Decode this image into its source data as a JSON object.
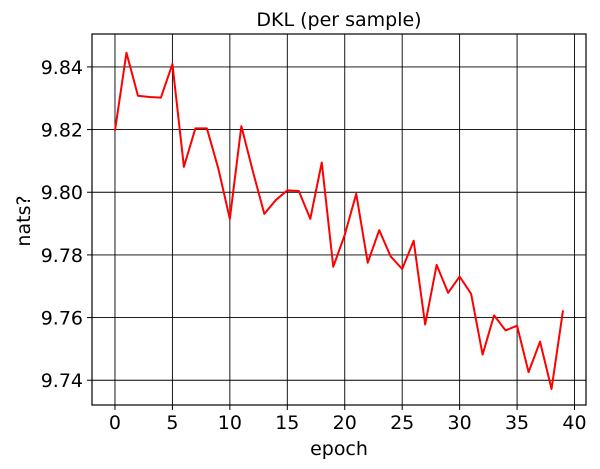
{
  "chart_data": {
    "type": "line",
    "title": "DKL (per sample)",
    "xlabel": "epoch",
    "ylabel": "nats?",
    "xlim": [
      -2,
      41
    ],
    "ylim": [
      9.7321,
      9.8505
    ],
    "xticks": [
      0,
      5,
      10,
      15,
      20,
      25,
      30,
      35,
      40
    ],
    "yticks": [
      9.74,
      9.76,
      9.78,
      9.8,
      9.82,
      9.84
    ],
    "xtick_labels": [
      "0",
      "5",
      "10",
      "15",
      "20",
      "25",
      "30",
      "35",
      "40"
    ],
    "ytick_labels": [
      "9.74",
      "9.76",
      "9.78",
      "9.80",
      "9.82",
      "9.84"
    ],
    "grid": true,
    "series": [
      {
        "color": "#ff0000",
        "x": [
          0,
          1,
          2,
          3,
          4,
          5,
          6,
          7,
          8,
          9,
          10,
          11,
          12,
          13,
          14,
          15,
          16,
          17,
          18,
          19,
          20,
          21,
          22,
          23,
          24,
          25,
          26,
          27,
          28,
          29,
          30,
          31,
          32,
          33,
          34,
          35,
          36,
          37,
          38,
          39
        ],
        "y": [
          9.8197,
          9.8445,
          9.8308,
          9.8304,
          9.8302,
          9.8409,
          9.8081,
          9.8204,
          9.8204,
          9.8075,
          9.7915,
          9.8211,
          9.8067,
          9.7931,
          9.7975,
          9.8006,
          9.8004,
          9.7915,
          9.8095,
          9.7762,
          9.7864,
          9.7995,
          9.7775,
          9.7879,
          9.7795,
          9.7755,
          9.7845,
          9.7578,
          9.7768,
          9.7679,
          9.7731,
          9.7676,
          9.7482,
          9.7607,
          9.7559,
          9.7574,
          9.7426,
          9.7523,
          9.7372,
          9.7623
        ]
      }
    ]
  }
}
